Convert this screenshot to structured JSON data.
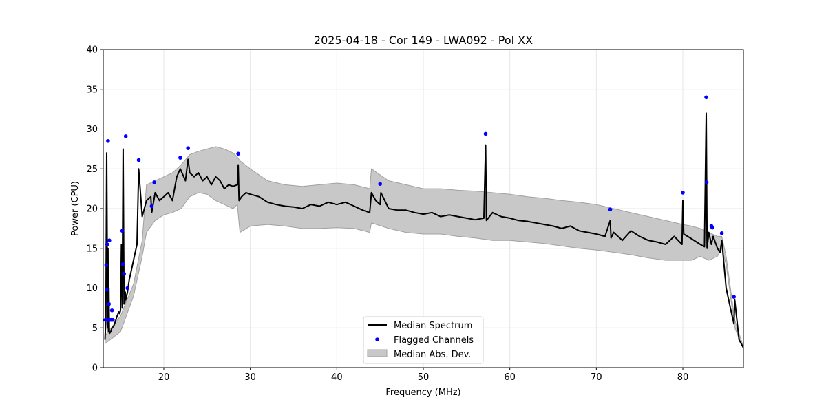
{
  "chart_data": {
    "type": "line",
    "title": "2025-04-18 - Cor 149 - LWA092 - Pol XX",
    "xlabel": "Frequency (MHz)",
    "ylabel": "Power (CPU)",
    "xlim": [
      13,
      87
    ],
    "ylim": [
      0,
      40
    ],
    "xticks": [
      20,
      30,
      40,
      50,
      60,
      70,
      80
    ],
    "yticks": [
      0,
      5,
      10,
      15,
      20,
      25,
      30,
      35,
      40
    ],
    "grid": true,
    "legend_position": "lower-center",
    "colors": {
      "median": "#000000",
      "flagged": "#0000ff",
      "mad_fill": "#c8c8c8",
      "mad_edge": "#a0a0a0",
      "grid": "#e6e6e6"
    },
    "series": [
      {
        "name": "Median Spectrum",
        "kind": "line",
        "x": [
          13.2,
          13.3,
          13.4,
          13.5,
          13.55,
          13.6,
          13.65,
          13.7,
          13.8,
          13.9,
          14.0,
          14.2,
          14.4,
          14.6,
          14.8,
          14.9,
          15.0,
          15.1,
          15.2,
          15.3,
          15.4,
          15.45,
          15.5,
          15.55,
          15.6,
          15.8,
          16.0,
          16.3,
          16.6,
          16.9,
          17.1,
          17.5,
          18.0,
          18.5,
          18.6,
          19.0,
          19.5,
          20.0,
          20.5,
          21.0,
          21.5,
          21.9,
          22.5,
          22.8,
          23.0,
          23.5,
          24.0,
          24.5,
          25.0,
          25.5,
          26.0,
          26.5,
          27.0,
          27.5,
          28.0,
          28.5,
          28.6,
          28.7,
          29.0,
          29.5,
          30.0,
          31.0,
          32.0,
          33.0,
          34.0,
          35.0,
          36.0,
          37.0,
          38.0,
          39.0,
          40.0,
          41.0,
          42.0,
          43.0,
          43.8,
          44.0,
          44.5,
          45.0,
          45.1,
          46.0,
          47.0,
          48.0,
          49.0,
          50.0,
          51.0,
          52.0,
          53.0,
          54.0,
          55.0,
          56.0,
          57.0,
          57.2,
          57.3,
          58.0,
          59.0,
          60.0,
          61.0,
          62.0,
          63.0,
          64.0,
          65.0,
          66.0,
          67.0,
          68.0,
          69.0,
          70.0,
          71.0,
          71.6,
          71.7,
          72.0,
          73.0,
          74.0,
          75.0,
          76.0,
          77.0,
          78.0,
          79.0,
          79.9,
          80.0,
          80.1,
          81.0,
          82.0,
          82.5,
          82.7,
          82.8,
          83.0,
          83.3,
          83.5,
          84.0,
          84.3,
          84.5,
          85.0,
          85.5,
          85.9,
          86.0,
          86.5,
          87.0
        ],
        "y": [
          3.5,
          6.0,
          27.0,
          5.0,
          15.0,
          4.5,
          10.0,
          4.3,
          4.4,
          4.6,
          5.0,
          5.2,
          5.8,
          6.5,
          7.0,
          6.8,
          7.2,
          15.5,
          7.5,
          27.5,
          8.0,
          9.0,
          8.2,
          9.5,
          8.5,
          9.5,
          11.0,
          12.5,
          14.0,
          15.5,
          25.0,
          19.0,
          21.0,
          21.5,
          19.5,
          22.0,
          21.0,
          21.5,
          22.0,
          21.0,
          24.0,
          25.0,
          23.5,
          26.2,
          24.5,
          24.0,
          24.5,
          23.5,
          24.0,
          23.0,
          24.0,
          23.5,
          22.5,
          23.0,
          22.8,
          23.0,
          25.5,
          21.0,
          21.5,
          22.0,
          21.8,
          21.5,
          20.8,
          20.5,
          20.3,
          20.2,
          20.0,
          20.5,
          20.3,
          20.8,
          20.5,
          20.8,
          20.3,
          19.8,
          19.5,
          22.0,
          21.0,
          20.5,
          22.0,
          20.0,
          19.8,
          19.8,
          19.5,
          19.3,
          19.5,
          19.0,
          19.2,
          19.0,
          18.8,
          18.6,
          18.8,
          28.0,
          18.5,
          19.5,
          19.0,
          18.8,
          18.5,
          18.4,
          18.2,
          18.0,
          17.8,
          17.5,
          17.8,
          17.2,
          17.0,
          16.8,
          16.5,
          18.5,
          16.3,
          17.0,
          16.0,
          17.2,
          16.5,
          16.0,
          15.8,
          15.5,
          16.5,
          15.5,
          21.0,
          16.8,
          16.2,
          15.5,
          15.2,
          32.0,
          15.0,
          17.0,
          15.5,
          16.5,
          15.0,
          14.5,
          16.0,
          10.0,
          7.5,
          5.5,
          8.5,
          3.5,
          2.5
        ]
      },
      {
        "name": "Flagged Channels",
        "kind": "scatter",
        "x": [
          13.25,
          13.35,
          13.4,
          13.45,
          13.5,
          13.55,
          13.65,
          13.7,
          13.75,
          13.9,
          14.0,
          14.1,
          15.2,
          15.25,
          15.4,
          15.6,
          15.8,
          17.1,
          18.6,
          18.9,
          21.9,
          22.8,
          28.6,
          45.0,
          57.2,
          71.6,
          80.0,
          82.7,
          82.75,
          83.3,
          83.4,
          84.5,
          85.9
        ],
        "y": [
          6.0,
          12.9,
          9.8,
          15.5,
          6.0,
          28.5,
          8.0,
          16.0,
          6.0,
          6.0,
          7.2,
          6.0,
          17.2,
          13.0,
          11.8,
          29.1,
          10.0,
          26.1,
          20.3,
          23.3,
          26.4,
          27.6,
          26.9,
          23.1,
          29.4,
          19.9,
          22.0,
          34.0,
          23.3,
          17.8,
          17.6,
          16.9,
          8.9
        ]
      },
      {
        "name": "Median Abs. Dev.",
        "kind": "band",
        "x": [
          13.2,
          15.0,
          16.5,
          17.5,
          18.0,
          19.0,
          20.0,
          21.0,
          22.0,
          23.0,
          24.0,
          25.0,
          26.0,
          27.0,
          28.0,
          28.5,
          28.8,
          30.0,
          32.0,
          34.0,
          36.0,
          38.0,
          40.0,
          42.0,
          43.8,
          44.0,
          46.0,
          48.0,
          50.0,
          52.0,
          54.0,
          56.0,
          58.0,
          60.0,
          62.0,
          64.0,
          66.0,
          68.0,
          70.0,
          72.0,
          74.0,
          76.0,
          78.0,
          80.0,
          81.0,
          82.0,
          83.0,
          84.0,
          84.5,
          85.0,
          86.0,
          87.0
        ],
        "lower": [
          3.0,
          4.5,
          9.0,
          14.0,
          17.0,
          18.5,
          19.2,
          19.5,
          20.0,
          21.5,
          22.0,
          21.8,
          21.0,
          20.5,
          20.0,
          20.5,
          17.0,
          17.8,
          18.0,
          17.8,
          17.5,
          17.5,
          17.6,
          17.5,
          17.0,
          18.2,
          17.5,
          17.0,
          16.8,
          16.8,
          16.5,
          16.3,
          16.0,
          16.0,
          15.8,
          15.6,
          15.3,
          15.0,
          14.8,
          14.5,
          14.2,
          13.8,
          13.5,
          13.5,
          13.5,
          14.0,
          13.5,
          14.0,
          15.0,
          13.0,
          5.0,
          2.3
        ],
        "upper": [
          4.0,
          6.5,
          10.5,
          16.0,
          23.0,
          23.5,
          24.0,
          24.5,
          25.5,
          26.8,
          27.2,
          27.5,
          27.8,
          27.5,
          27.0,
          26.5,
          26.0,
          25.0,
          23.5,
          23.0,
          22.8,
          23.0,
          23.2,
          23.0,
          22.5,
          25.0,
          23.5,
          23.0,
          22.5,
          22.5,
          22.3,
          22.2,
          22.0,
          21.8,
          21.5,
          21.3,
          21.0,
          20.8,
          20.5,
          20.0,
          19.5,
          19.0,
          18.5,
          18.0,
          17.8,
          17.5,
          17.0,
          16.5,
          16.5,
          14.0,
          6.0,
          2.6
        ]
      }
    ],
    "legend": [
      "Median Spectrum",
      "Flagged Channels",
      "Median Abs. Dev."
    ]
  }
}
